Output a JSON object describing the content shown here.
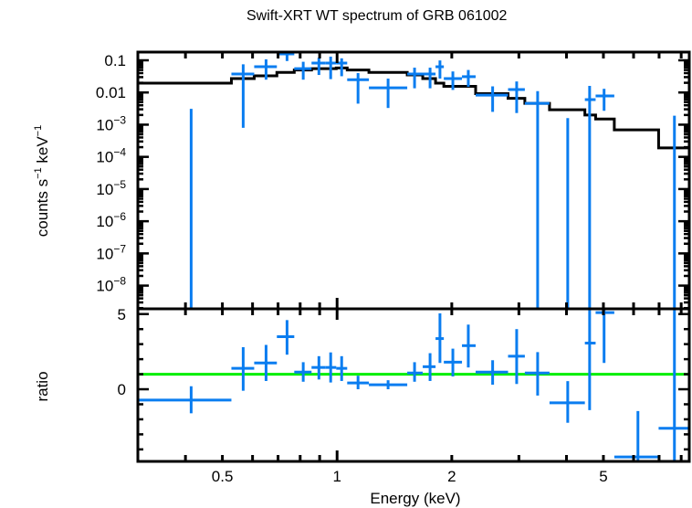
{
  "chart_data": [
    {
      "panel": "spectrum",
      "type": "scatter",
      "title": "Swift-XRT WT spectrum of GRB 061002",
      "xlabel": "Energy (keV)",
      "ylabel": "counts s⁻¹ keV⁻¹",
      "xscale": "log",
      "yscale": "log",
      "xlim": [
        0.3,
        8.4
      ],
      "ylim": [
        1.9e-09,
        0.18
      ],
      "ytick_values": [
        0.1,
        0.01,
        0.001,
        0.0001,
        1e-05,
        1e-06,
        1e-07,
        1e-08
      ],
      "ytick_labels": [
        {
          "base": "0.1",
          "exp": ""
        },
        {
          "base": "0.01",
          "exp": ""
        },
        {
          "base": "10",
          "exp": "−3"
        },
        {
          "base": "10",
          "exp": "−4"
        },
        {
          "base": "10",
          "exp": "−5"
        },
        {
          "base": "10",
          "exp": "−6"
        },
        {
          "base": "10",
          "exp": "−7"
        },
        {
          "base": "10",
          "exp": "−8"
        }
      ],
      "series": [
        {
          "name": "data",
          "color": "#0a7df0",
          "points": [
            {
              "x": 0.414,
              "xlo": 0.414,
              "xhi": 0.414,
              "y": null,
              "ylo": null,
              "yhi": 0.0031
            },
            {
              "x": 0.567,
              "xlo": 0.528,
              "xhi": 0.606,
              "y": 0.0375,
              "ylo": 0.0008,
              "yhi": 0.075
            },
            {
              "x": 0.651,
              "xlo": 0.606,
              "xhi": 0.695,
              "y": 0.063,
              "ylo": 0.025,
              "yhi": 0.107
            },
            {
              "x": 0.739,
              "xlo": 0.695,
              "xhi": 0.772,
              "y": 0.158,
              "ylo": 0.095,
              "yhi": 0.19
            },
            {
              "x": 0.815,
              "xlo": 0.772,
              "xhi": 0.857,
              "y": 0.055,
              "ylo": 0.025,
              "yhi": 0.09
            },
            {
              "x": 0.896,
              "xlo": 0.857,
              "xhi": 0.931,
              "y": 0.082,
              "ylo": 0.035,
              "yhi": 0.12
            },
            {
              "x": 0.962,
              "xlo": 0.931,
              "xhi": 0.995,
              "y": 0.082,
              "ylo": 0.026,
              "yhi": 0.13
            },
            {
              "x": 1.028,
              "xlo": 0.995,
              "xhi": 1.063,
              "y": 0.082,
              "ylo": 0.032,
              "yhi": 0.115
            },
            {
              "x": 1.135,
              "xlo": 1.063,
              "xhi": 1.212,
              "y": 0.025,
              "ylo": 0.0045,
              "yhi": 0.04
            },
            {
              "x": 1.361,
              "xlo": 1.212,
              "xhi": 1.528,
              "y": 0.014,
              "ylo": 0.0033,
              "yhi": 0.027
            },
            {
              "x": 1.597,
              "xlo": 1.528,
              "xhi": 1.678,
              "y": 0.0375,
              "ylo": 0.0135,
              "yhi": 0.059
            },
            {
              "x": 1.754,
              "xlo": 1.678,
              "xhi": 1.813,
              "y": 0.0375,
              "ylo": 0.0135,
              "yhi": 0.059
            },
            {
              "x": 1.862,
              "xlo": 1.813,
              "xhi": 1.906,
              "y": 0.063,
              "ylo": 0.027,
              "yhi": 0.099
            },
            {
              "x": 2.013,
              "xlo": 1.906,
              "xhi": 2.127,
              "y": 0.027,
              "ylo": 0.012,
              "yhi": 0.045
            },
            {
              "x": 2.21,
              "xlo": 2.127,
              "xhi": 2.31,
              "y": 0.031,
              "ylo": 0.015,
              "yhi": 0.05
            },
            {
              "x": 2.56,
              "xlo": 2.31,
              "xhi": 2.81,
              "y": 0.0083,
              "ylo": 0.0025,
              "yhi": 0.0155
            },
            {
              "x": 2.96,
              "xlo": 2.81,
              "xhi": 3.11,
              "y": 0.0123,
              "ylo": 0.0023,
              "yhi": 0.022
            },
            {
              "x": 3.36,
              "xlo": 3.11,
              "xhi": 3.61,
              "y": 0.0046,
              "ylo": null,
              "yhi": 0.011
            },
            {
              "x": 4.03,
              "xlo": 4.03,
              "xhi": 4.03,
              "y": null,
              "ylo": null,
              "yhi": 0.0016
            },
            {
              "x": 4.6,
              "xlo": 4.47,
              "xhi": 4.77,
              "y": 0.006,
              "ylo": null,
              "yhi": 0.016
            },
            {
              "x": 5.02,
              "xlo": 4.77,
              "xhi": 5.34,
              "y": 0.0078,
              "ylo": 0.0027,
              "yhi": 0.013
            },
            {
              "x": 7.68,
              "xlo": 7.68,
              "xhi": 7.68,
              "y": null,
              "ylo": null,
              "yhi": 0.0019
            }
          ]
        },
        {
          "name": "model",
          "color": "#000000",
          "steps": [
            {
              "xlo": 0.3,
              "xhi": 0.528,
              "y": 0.0195
            },
            {
              "xlo": 0.528,
              "xhi": 0.606,
              "y": 0.027
            },
            {
              "xlo": 0.606,
              "xhi": 0.695,
              "y": 0.033
            },
            {
              "xlo": 0.695,
              "xhi": 0.772,
              "y": 0.042
            },
            {
              "xlo": 0.772,
              "xhi": 0.857,
              "y": 0.05
            },
            {
              "xlo": 0.857,
              "xhi": 0.995,
              "y": 0.055
            },
            {
              "xlo": 0.995,
              "xhi": 1.063,
              "y": 0.058
            },
            {
              "xlo": 1.063,
              "xhi": 1.212,
              "y": 0.05
            },
            {
              "xlo": 1.212,
              "xhi": 1.528,
              "y": 0.042
            },
            {
              "xlo": 1.528,
              "xhi": 1.678,
              "y": 0.035
            },
            {
              "xlo": 1.678,
              "xhi": 1.813,
              "y": 0.027
            },
            {
              "xlo": 1.813,
              "xhi": 1.906,
              "y": 0.0195
            },
            {
              "xlo": 1.906,
              "xhi": 2.31,
              "y": 0.0155
            },
            {
              "xlo": 2.31,
              "xhi": 2.81,
              "y": 0.0092
            },
            {
              "xlo": 2.81,
              "xhi": 3.11,
              "y": 0.0066
            },
            {
              "xlo": 3.11,
              "xhi": 3.61,
              "y": 0.0046
            },
            {
              "xlo": 3.61,
              "xhi": 4.47,
              "y": 0.0029
            },
            {
              "xlo": 4.47,
              "xhi": 4.77,
              "y": 0.002
            },
            {
              "xlo": 4.77,
              "xhi": 5.34,
              "y": 0.0015
            },
            {
              "xlo": 5.34,
              "xhi": 6.98,
              "y": 0.00069
            },
            {
              "xlo": 6.98,
              "xhi": 8.4,
              "y": 0.00019
            }
          ]
        }
      ]
    },
    {
      "panel": "ratio",
      "type": "scatter",
      "xlabel": "Energy (keV)",
      "ylabel": "ratio",
      "xscale": "log",
      "yscale": "linear",
      "xlim": [
        0.3,
        8.4
      ],
      "ylim": [
        -4.8,
        5.35
      ],
      "ytick_values": [
        5,
        0
      ],
      "ytick_labels": [
        "5",
        "0"
      ],
      "xtick_values": [
        0.5,
        1,
        2,
        5
      ],
      "xtick_labels": [
        "0.5",
        "1",
        "2",
        "5"
      ],
      "reference_line": {
        "y": 1,
        "color": "#00ee00"
      },
      "series": [
        {
          "name": "ratio",
          "color": "#0a7df0",
          "points": [
            {
              "x": 0.414,
              "xlo": 0.3,
              "xhi": 0.528,
              "y": -0.72,
              "ylo": -1.6,
              "yhi": 0.2
            },
            {
              "x": 0.567,
              "xlo": 0.528,
              "xhi": 0.606,
              "y": 1.39,
              "ylo": -0.1,
              "yhi": 2.8
            },
            {
              "x": 0.651,
              "xlo": 0.606,
              "xhi": 0.695,
              "y": 1.75,
              "ylo": 0.55,
              "yhi": 2.95
            },
            {
              "x": 0.739,
              "xlo": 0.695,
              "xhi": 0.772,
              "y": 3.5,
              "ylo": 2.3,
              "yhi": 4.6
            },
            {
              "x": 0.815,
              "xlo": 0.772,
              "xhi": 0.857,
              "y": 1.14,
              "ylo": 0.5,
              "yhi": 1.8
            },
            {
              "x": 0.896,
              "xlo": 0.857,
              "xhi": 0.931,
              "y": 1.45,
              "ylo": 0.65,
              "yhi": 2.2
            },
            {
              "x": 0.962,
              "xlo": 0.931,
              "xhi": 0.995,
              "y": 1.45,
              "ylo": 0.45,
              "yhi": 2.45
            },
            {
              "x": 1.028,
              "xlo": 0.995,
              "xhi": 1.063,
              "y": 1.39,
              "ylo": 0.55,
              "yhi": 2.2
            },
            {
              "x": 1.135,
              "xlo": 1.063,
              "xhi": 1.212,
              "y": 0.42,
              "ylo": 0.0,
              "yhi": 0.9
            },
            {
              "x": 1.361,
              "xlo": 1.212,
              "xhi": 1.528,
              "y": 0.3,
              "ylo": 0.0,
              "yhi": 0.6
            },
            {
              "x": 1.597,
              "xlo": 1.528,
              "xhi": 1.678,
              "y": 1.08,
              "ylo": 0.5,
              "yhi": 1.8
            },
            {
              "x": 1.754,
              "xlo": 1.678,
              "xhi": 1.813,
              "y": 1.5,
              "ylo": 0.55,
              "yhi": 2.4
            },
            {
              "x": 1.862,
              "xlo": 1.813,
              "xhi": 1.906,
              "y": 3.37,
              "ylo": 1.75,
              "yhi": 5.05
            },
            {
              "x": 2.013,
              "xlo": 1.906,
              "xhi": 2.127,
              "y": 1.8,
              "ylo": 0.85,
              "yhi": 2.7
            },
            {
              "x": 2.21,
              "xlo": 2.127,
              "xhi": 2.31,
              "y": 2.9,
              "ylo": 1.45,
              "yhi": 4.3
            },
            {
              "x": 2.56,
              "xlo": 2.31,
              "xhi": 2.81,
              "y": 1.14,
              "ylo": 0.3,
              "yhi": 1.93
            },
            {
              "x": 2.96,
              "xlo": 2.81,
              "xhi": 3.11,
              "y": 2.2,
              "ylo": 0.35,
              "yhi": 4.0
            },
            {
              "x": 3.36,
              "xlo": 3.11,
              "xhi": 3.61,
              "y": 1.08,
              "ylo": -0.42,
              "yhi": 2.47
            },
            {
              "x": 4.03,
              "xlo": 3.61,
              "xhi": 4.47,
              "y": -0.9,
              "ylo": -2.23,
              "yhi": 0.54
            },
            {
              "x": 4.6,
              "xlo": 4.47,
              "xhi": 4.77,
              "y": 3.07,
              "ylo": -1.39,
              "yhi": 5.5
            },
            {
              "x": 5.02,
              "xlo": 4.77,
              "xhi": 5.34,
              "y": 5.1,
              "ylo": 1.75,
              "yhi": 5.35
            },
            {
              "x": 6.16,
              "xlo": 5.34,
              "xhi": 6.98,
              "y": -4.5,
              "ylo": -4.8,
              "yhi": -1.45
            },
            {
              "x": 7.68,
              "xlo": 6.98,
              "xhi": 8.4,
              "y": -2.6,
              "ylo": -4.8,
              "yhi": 5.35
            }
          ]
        }
      ]
    }
  ]
}
